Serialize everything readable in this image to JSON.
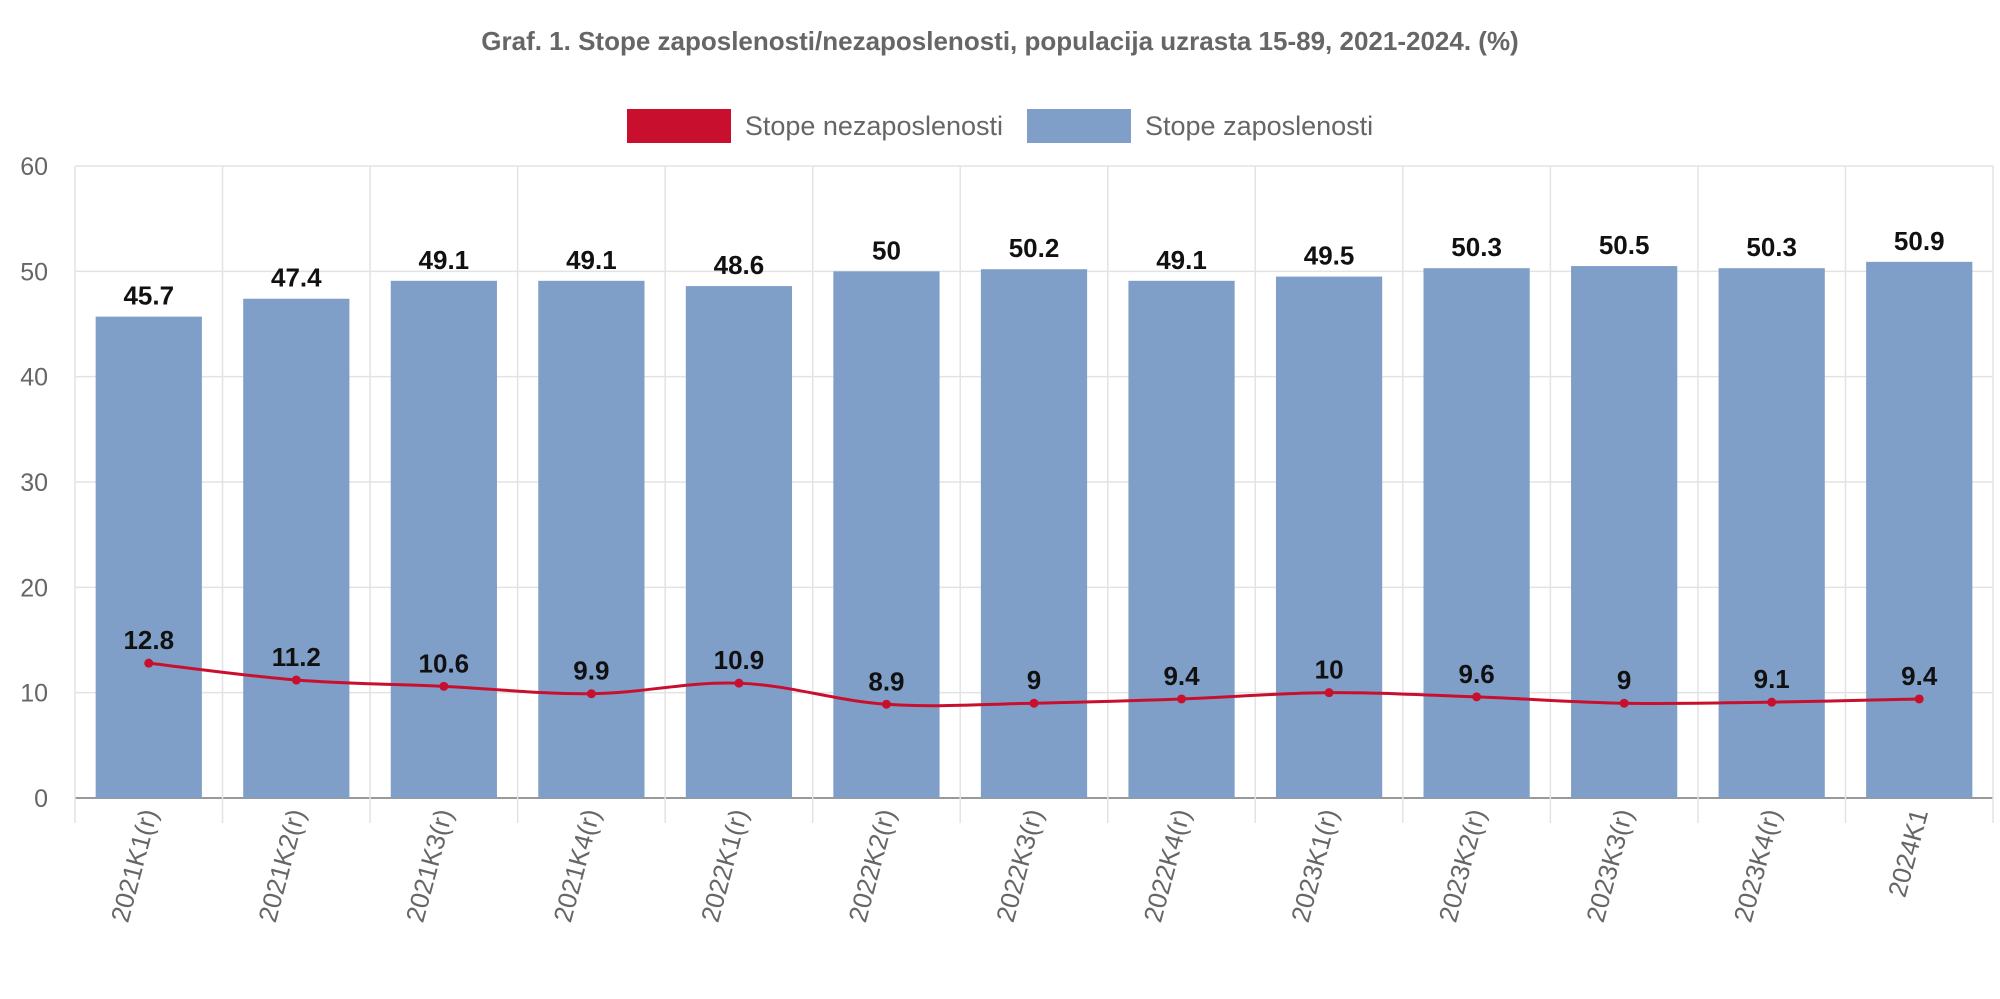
{
  "chart_data": {
    "type": "bar",
    "title": "Graf. 1. Stope zaposlenosti/nezaposlenosti, populacija uzrasta 15-89, 2021-2024. (%)",
    "categories": [
      "2021K1(r)",
      "2021K2(r)",
      "2021K3(r)",
      "2021K4(r)",
      "2022K1(r)",
      "2022K2(r)",
      "2022K3(r)",
      "2022K4(r)",
      "2023K1(r)",
      "2023K2(r)",
      "2023K3(r)",
      "2023K4(r)",
      "2024K1"
    ],
    "series": [
      {
        "name": "Stope nezaposlenosti",
        "type": "line",
        "color": "#c8102e",
        "values": [
          12.8,
          11.2,
          10.6,
          9.9,
          10.9,
          8.9,
          9,
          9.4,
          10,
          9.6,
          9,
          9.1,
          9.4
        ],
        "labels": [
          "12.8",
          "11.2",
          "10.6",
          "9.9",
          "10.9",
          "8.9",
          "9",
          "9.4",
          "10",
          "9.6",
          "9",
          "9.1",
          "9.4"
        ]
      },
      {
        "name": "Stope zaposlenosti",
        "type": "bar",
        "color": "#7f9fc8",
        "values": [
          45.7,
          47.4,
          49.1,
          49.1,
          48.6,
          50,
          50.2,
          49.1,
          49.5,
          50.3,
          50.5,
          50.3,
          50.9
        ],
        "labels": [
          "45.7",
          "47.4",
          "49.1",
          "49.1",
          "48.6",
          "50",
          "50.2",
          "49.1",
          "49.5",
          "50.3",
          "50.5",
          "50.3",
          "50.9"
        ]
      }
    ],
    "ylim": [
      0,
      60
    ],
    "yticks": [
      "0",
      "10",
      "20",
      "30",
      "40",
      "50",
      "60"
    ],
    "grid": true,
    "legend_position": "top-center"
  }
}
